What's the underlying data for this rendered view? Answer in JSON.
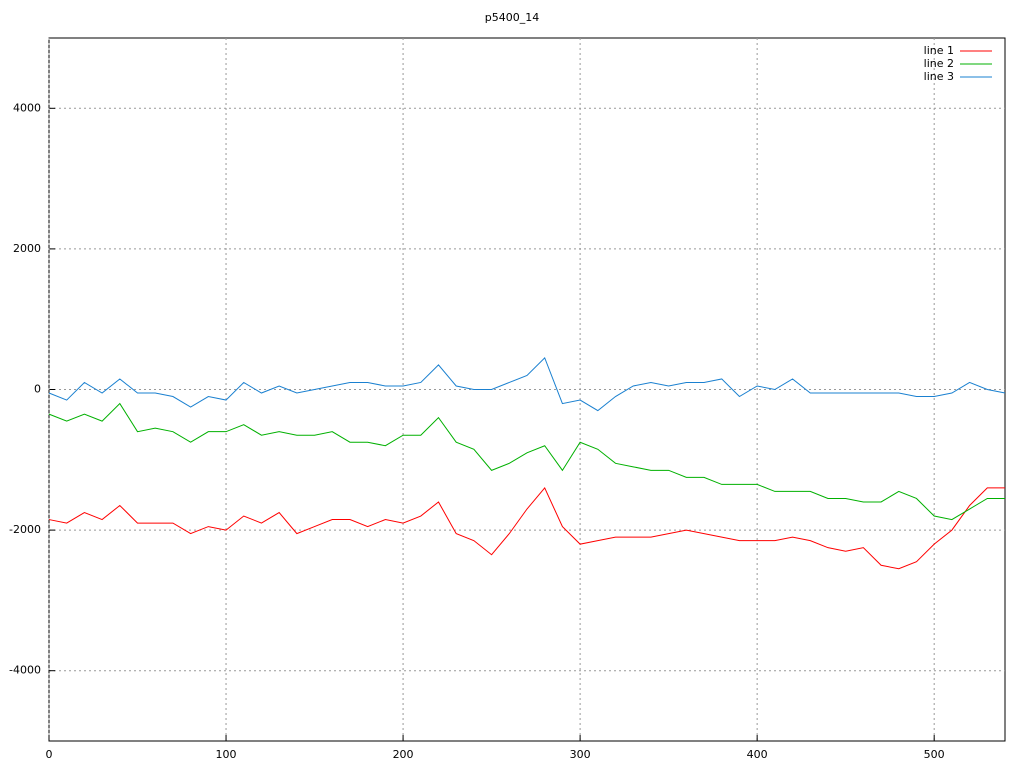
{
  "chart_data": {
    "type": "line",
    "title": "p5400_14",
    "x": [
      0,
      10,
      20,
      30,
      40,
      50,
      60,
      70,
      80,
      90,
      100,
      110,
      120,
      130,
      140,
      150,
      160,
      170,
      180,
      190,
      200,
      210,
      220,
      230,
      240,
      250,
      260,
      270,
      280,
      290,
      300,
      310,
      320,
      330,
      340,
      350,
      360,
      370,
      380,
      390,
      400,
      410,
      420,
      430,
      440,
      450,
      460,
      470,
      480,
      490,
      500,
      510,
      520,
      530,
      540
    ],
    "series": [
      {
        "name": "line 1",
        "color": "#ff0000",
        "values": [
          -1850,
          -1900,
          -1750,
          -1850,
          -1650,
          -1900,
          -1900,
          -1900,
          -2050,
          -1950,
          -2000,
          -1800,
          -1900,
          -1750,
          -2050,
          -1950,
          -1850,
          -1850,
          -1950,
          -1850,
          -1900,
          -1800,
          -1600,
          -2050,
          -2150,
          -2350,
          -2050,
          -1700,
          -1400,
          -1950,
          -2200,
          -2150,
          -2100,
          -2100,
          -2100,
          -2050,
          -2000,
          -2050,
          -2100,
          -2150,
          -2150,
          -2150,
          -2100,
          -2150,
          -2250,
          -2300,
          -2250,
          -2500,
          -2550,
          -2450,
          -2200,
          -2000,
          -1650,
          -1400,
          -1400
        ]
      },
      {
        "name": "line 2",
        "color": "#00b000",
        "values": [
          -350,
          -450,
          -350,
          -450,
          -200,
          -600,
          -550,
          -600,
          -750,
          -600,
          -600,
          -500,
          -650,
          -600,
          -650,
          -650,
          -600,
          -750,
          -750,
          -800,
          -650,
          -650,
          -400,
          -750,
          -850,
          -1150,
          -1050,
          -900,
          -800,
          -1150,
          -750,
          -850,
          -1050,
          -1100,
          -1150,
          -1150,
          -1250,
          -1250,
          -1350,
          -1350,
          -1350,
          -1450,
          -1450,
          -1450,
          -1550,
          -1550,
          -1600,
          -1600,
          -1450,
          -1550,
          -1800,
          -1850,
          -1700,
          -1550,
          -1550
        ]
      },
      {
        "name": "line 3",
        "color": "#1a80d0",
        "values": [
          -50,
          -150,
          100,
          -50,
          150,
          -50,
          -50,
          -100,
          -250,
          -100,
          -150,
          100,
          -50,
          50,
          -50,
          0,
          50,
          100,
          100,
          50,
          50,
          100,
          350,
          50,
          0,
          0,
          100,
          200,
          450,
          -200,
          -150,
          -300,
          -100,
          50,
          100,
          50,
          100,
          100,
          150,
          -100,
          50,
          0,
          150,
          -50,
          -50,
          -50,
          -50,
          -50,
          -50,
          -100,
          -100,
          -50,
          100,
          0,
          -50
        ]
      }
    ],
    "xlim": [
      0,
      540
    ],
    "ylim": [
      -5000,
      5000
    ],
    "xticks": [
      0,
      100,
      200,
      300,
      400,
      500
    ],
    "yticks": [
      -4000,
      -2000,
      0,
      2000,
      4000
    ],
    "grid": true,
    "legend": "top-right"
  }
}
